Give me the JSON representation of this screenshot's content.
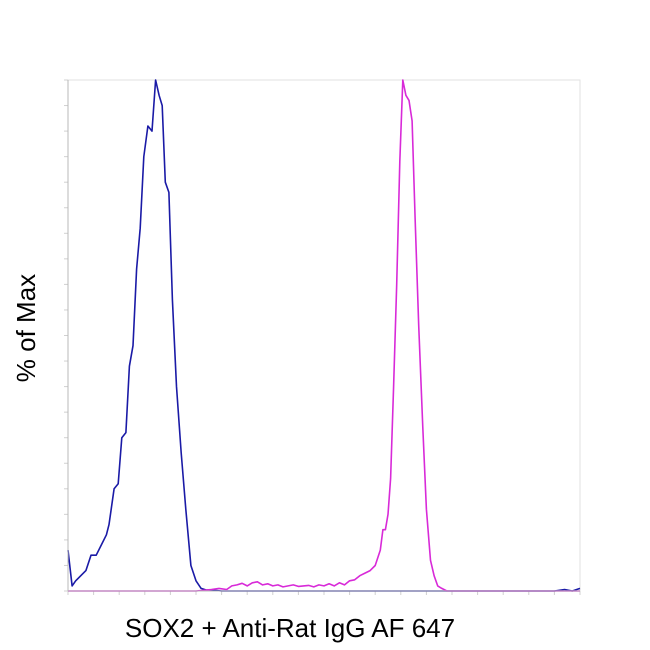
{
  "chart_data": {
    "type": "line",
    "title": "",
    "xlabel": "SOX2 + Anti-Rat IgG AF 647",
    "ylabel": "% of Max",
    "xlim": [
      0,
      100
    ],
    "ylim": [
      0,
      100
    ],
    "grid": false,
    "legend": "none",
    "series": [
      {
        "color": "#1a1aa6",
        "x": [
          0,
          0.8,
          1.5,
          2.5,
          3.5,
          4.5,
          5.5,
          6.5,
          7.5,
          8.0,
          9.0,
          9.8,
          10.5,
          11.3,
          12.0,
          12.7,
          13.4,
          14.1,
          14.8,
          15.6,
          16.4,
          17.1,
          17.8,
          18.4,
          19.0,
          19.7,
          20.4,
          21.2,
          22.1,
          23.0,
          24.0,
          25.0,
          26.0,
          27.0,
          28.0,
          29.0,
          30.0,
          32.0,
          34.0,
          36.0,
          40.0,
          45.0,
          50.0,
          55.0,
          60.0,
          65.0,
          70.0,
          75.0,
          80.0,
          85.0,
          90.0,
          95.0,
          97.0,
          98.5,
          100
        ],
        "y": [
          8,
          1,
          2,
          3,
          4,
          7,
          7,
          9,
          11,
          13,
          20,
          21,
          30,
          31,
          44,
          48,
          63,
          71,
          85,
          91,
          90,
          100,
          97,
          95,
          80,
          78,
          57,
          40,
          27,
          16,
          5,
          2,
          0.5,
          0.2,
          0.2,
          0.1,
          0,
          0,
          0,
          0,
          0,
          0,
          0,
          0,
          0,
          0,
          0,
          0,
          0,
          0,
          0,
          0,
          0.3,
          0,
          0.5
        ]
      },
      {
        "color": "#d82ad8",
        "x": [
          0,
          10,
          20,
          25,
          28,
          29.5,
          31,
          32,
          33,
          34,
          35,
          36,
          37,
          38,
          39,
          40,
          41,
          42,
          43,
          44,
          45,
          46,
          47,
          48,
          49,
          50,
          51,
          52,
          53,
          54,
          55,
          56,
          57,
          58,
          59,
          60,
          61,
          61.5,
          62.0,
          62.5,
          63.0,
          63.6,
          64.2,
          64.8,
          65.4,
          66.0,
          66.6,
          67.2,
          67.8,
          68.5,
          69.3,
          70.0,
          70.8,
          71.5,
          72.2,
          73.0,
          74.0,
          75.0,
          76.0,
          77.0,
          80.0,
          85.0,
          90.0,
          95.0,
          100
        ],
        "y": [
          0,
          0,
          0,
          0,
          0.3,
          0.5,
          0.3,
          1,
          1.2,
          1.5,
          1,
          1.6,
          1.8,
          1.2,
          1.4,
          1,
          1.2,
          0.8,
          1,
          1.2,
          0.9,
          1,
          1.1,
          0.8,
          1.2,
          1,
          1.4,
          1,
          1.6,
          1.2,
          2,
          2.2,
          3,
          3.5,
          4,
          5,
          8,
          12,
          12,
          15,
          22,
          40,
          60,
          84,
          100,
          97,
          96,
          92,
          73,
          52,
          32,
          16,
          6,
          3,
          1,
          0.5,
          0,
          0,
          0,
          0,
          0,
          0,
          0,
          0,
          0
        ]
      }
    ]
  }
}
